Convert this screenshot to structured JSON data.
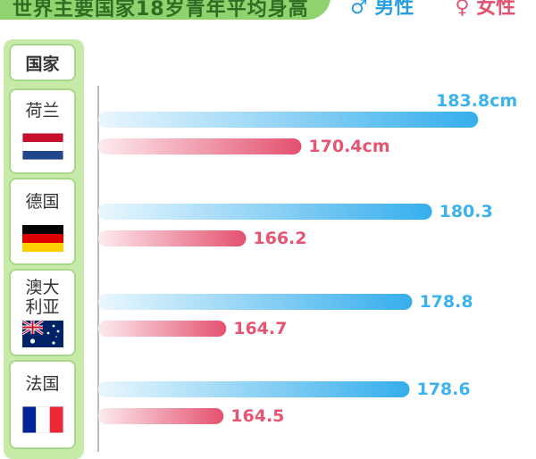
{
  "header": {
    "title": "世界主要国家18岁青年平均身高",
    "legend_male": "♂ 男性",
    "legend_female": "♀ 女性",
    "column_label": "国家"
  },
  "colors": {
    "male": "#3cb2ee",
    "female": "#e65673",
    "green": "#8fd36e"
  },
  "chart_data": {
    "type": "bar",
    "orientation": "horizontal",
    "categories": [
      "荷兰",
      "德国",
      "澳大利亚",
      "法国"
    ],
    "category_lines": [
      [
        "荷兰"
      ],
      [
        "德国"
      ],
      [
        "澳大",
        "利亚"
      ],
      [
        "法国"
      ]
    ],
    "flags": [
      "netherlands-flag",
      "germany-flag",
      "australia-flag",
      "france-flag"
    ],
    "series": [
      {
        "name": "男性",
        "values": [
          183.8,
          180.3,
          178.8,
          178.6
        ]
      },
      {
        "name": "女性",
        "values": [
          170.4,
          166.2,
          164.7,
          164.5
        ]
      }
    ],
    "data_labels": [
      [
        "183.8cm",
        "180.3",
        "178.8",
        "178.6"
      ],
      [
        "170.4cm",
        "166.2",
        "164.7",
        "164.5"
      ]
    ],
    "xlim": [
      155,
      185
    ],
    "title": "世界主要国家18岁青年平均身高",
    "xlabel": "",
    "ylabel": "国家"
  }
}
